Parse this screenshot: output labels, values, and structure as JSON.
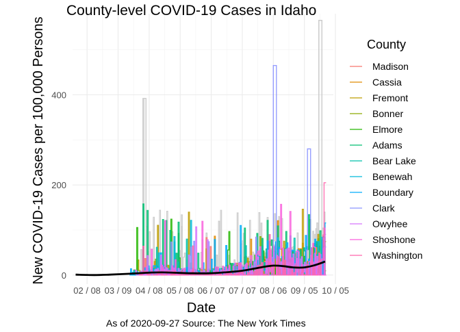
{
  "chart_data": {
    "type": "line",
    "title": "County-level COVID-19 Cases in Idaho",
    "xlabel": "Date",
    "ylabel": "New COVID-19 Cases per 100,000 Persons",
    "caption": "As of 2020-09-27 Source: The New York Times",
    "x_axis": {
      "type": "date",
      "range": [
        "2020-01-25",
        "2020-10-03"
      ],
      "ticks": [
        {
          "date": "2020-02-08",
          "label": "02 / 08"
        },
        {
          "date": "2020-03-09",
          "label": "03 / 09"
        },
        {
          "date": "2020-04-08",
          "label": "04 / 08"
        },
        {
          "date": "2020-05-08",
          "label": "05 / 08"
        },
        {
          "date": "2020-06-07",
          "label": "06 / 07"
        },
        {
          "date": "2020-07-07",
          "label": "07 / 07"
        },
        {
          "date": "2020-08-06",
          "label": "08 / 06"
        },
        {
          "date": "2020-09-05",
          "label": "09 / 05"
        },
        {
          "date": "2020-10-05",
          "label": "10 / 05"
        }
      ]
    },
    "y_axis": {
      "range": [
        -20,
        580
      ],
      "ticks": [
        0,
        200,
        400
      ]
    },
    "grid": true,
    "legend": {
      "title": "County",
      "position": "right",
      "entries": [
        {
          "name": "Madison",
          "color": "#F8766D"
        },
        {
          "name": "Cassia",
          "color": "#E18A00"
        },
        {
          "name": "Fremont",
          "color": "#BE9C00"
        },
        {
          "name": "Bonner",
          "color": "#8CAB00"
        },
        {
          "name": "Elmore",
          "color": "#24B700"
        },
        {
          "name": "Adams",
          "color": "#00BE70"
        },
        {
          "name": "Bear Lake",
          "color": "#00C1AB"
        },
        {
          "name": "Benewah",
          "color": "#00BBDA"
        },
        {
          "name": "Boundary",
          "color": "#00ACFC"
        },
        {
          "name": "Clark",
          "color": "#8B93FF"
        },
        {
          "name": "Owyhee",
          "color": "#D575FE"
        },
        {
          "name": "Shoshone",
          "color": "#F962DD"
        },
        {
          "name": "Washington",
          "color": "#FF65AC"
        }
      ]
    },
    "other_counties_color": "#cccccc",
    "trend_line": {
      "color": "#000000",
      "dates": [
        "2020-01-28",
        "2020-02-15",
        "2020-03-01",
        "2020-03-20",
        "2020-04-05",
        "2020-04-20",
        "2020-05-05",
        "2020-05-20",
        "2020-06-05",
        "2020-06-20",
        "2020-07-05",
        "2020-07-20",
        "2020-07-30",
        "2020-08-06",
        "2020-08-15",
        "2020-08-25",
        "2020-09-05",
        "2020-09-15",
        "2020-09-25"
      ],
      "values": [
        1,
        0,
        1,
        3,
        5,
        6,
        5,
        4,
        4,
        6,
        9,
        15,
        19,
        21,
        20,
        17,
        17,
        22,
        30
      ]
    },
    "notable_peaks": [
      {
        "series": "other",
        "date": "2020-04-03",
        "value": 392
      },
      {
        "series": "other",
        "date": "2020-09-20",
        "value": 565
      },
      {
        "series": "Clark",
        "date": "2020-08-07",
        "value": 465
      },
      {
        "series": "Clark",
        "date": "2020-09-09",
        "value": 280
      },
      {
        "series": "Washington",
        "date": "2020-09-25",
        "value": 205
      }
    ]
  }
}
